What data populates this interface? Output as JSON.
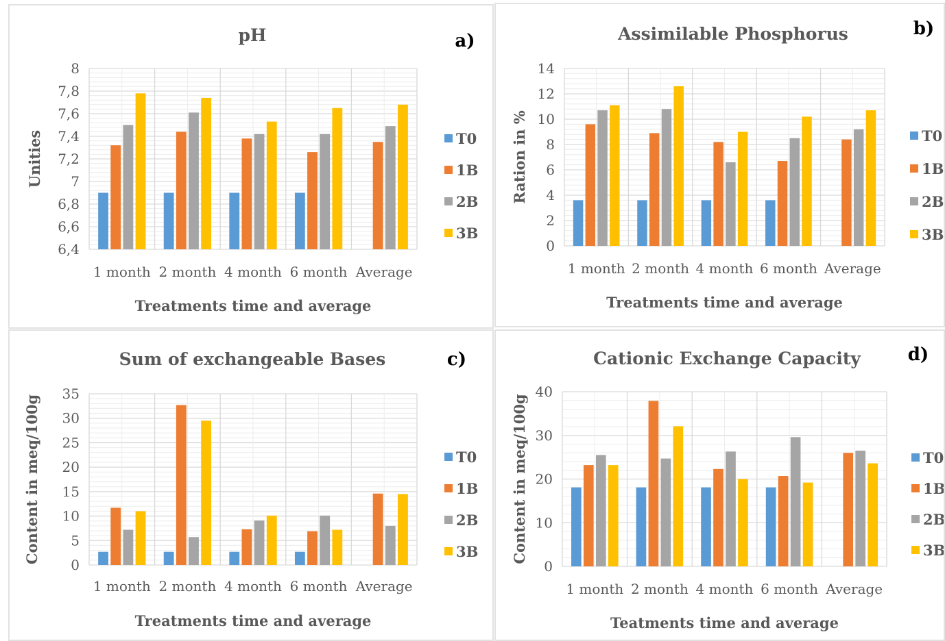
{
  "colors": {
    "T0": "#5b9bd5",
    "1B": "#ed7d31",
    "2B": "#a5a5a5",
    "3B": "#ffc000",
    "grid": "#d9d9d9",
    "text": "#595959"
  },
  "chart_data": [
    {
      "type": "bar",
      "panel_tag": "a)",
      "title": "pH",
      "xlabel": "Treatments time and average",
      "ylabel": "Unities",
      "categories": [
        "1 month",
        "2 month",
        "4 month",
        "6 month",
        "Average"
      ],
      "ylim": [
        6.4,
        8
      ],
      "yticks": [
        "6,4",
        "6,6",
        "6,8",
        "7",
        "7,2",
        "7,4",
        "7,6",
        "7,8",
        "8"
      ],
      "ytick_values": [
        6.4,
        6.6,
        6.8,
        7.0,
        7.2,
        7.4,
        7.6,
        7.8,
        8.0
      ],
      "legend_position": "right",
      "grid": true,
      "series": [
        {
          "name": "T0",
          "values": [
            6.9,
            6.9,
            6.9,
            6.9,
            null
          ]
        },
        {
          "name": "1B",
          "values": [
            7.32,
            7.44,
            7.38,
            7.26,
            7.35
          ]
        },
        {
          "name": "2B",
          "values": [
            7.5,
            7.61,
            7.42,
            7.42,
            7.49
          ]
        },
        {
          "name": "3B",
          "values": [
            7.78,
            7.74,
            7.53,
            7.65,
            7.68
          ]
        }
      ]
    },
    {
      "type": "bar",
      "panel_tag": "b)",
      "title": "Assimilable Phosphorus",
      "xlabel": "Treatments time and average",
      "ylabel": "Ration in %",
      "categories": [
        "1 month",
        "2 month",
        "4 month",
        "6 month",
        "Average"
      ],
      "ylim": [
        0,
        14
      ],
      "yticks": [
        "0",
        "2",
        "4",
        "6",
        "8",
        "10",
        "12",
        "14"
      ],
      "ytick_values": [
        0,
        2,
        4,
        6,
        8,
        10,
        12,
        14
      ],
      "legend_position": "right",
      "grid": true,
      "series": [
        {
          "name": "T0",
          "values": [
            3.6,
            3.6,
            3.6,
            3.6,
            null
          ]
        },
        {
          "name": "1B",
          "values": [
            9.6,
            8.9,
            8.2,
            6.7,
            8.4
          ]
        },
        {
          "name": "2B",
          "values": [
            10.7,
            10.8,
            6.6,
            8.5,
            9.2
          ]
        },
        {
          "name": "3B",
          "values": [
            11.1,
            12.6,
            9.0,
            10.2,
            10.7
          ]
        }
      ]
    },
    {
      "type": "bar",
      "panel_tag": "c)",
      "title": "Sum of exchangeable Bases",
      "xlabel": "Treatments time and average",
      "ylabel": "Content in meq/100g",
      "categories": [
        "1 month",
        "2 month",
        "4 month",
        "6 month",
        "Average"
      ],
      "ylim": [
        0,
        35
      ],
      "yticks": [
        "0",
        "5",
        "10",
        "15",
        "20",
        "25",
        "30",
        "35"
      ],
      "ytick_values": [
        0,
        5,
        10,
        15,
        20,
        25,
        30,
        35
      ],
      "legend_position": "right",
      "grid": true,
      "series": [
        {
          "name": "T0",
          "values": [
            2.7,
            2.7,
            2.7,
            2.7,
            null
          ]
        },
        {
          "name": "1B",
          "values": [
            11.7,
            32.7,
            7.3,
            6.9,
            14.6
          ]
        },
        {
          "name": "2B",
          "values": [
            7.2,
            5.7,
            9.1,
            10.1,
            8.0
          ]
        },
        {
          "name": "3B",
          "values": [
            11.0,
            29.5,
            10.1,
            7.2,
            14.5
          ]
        }
      ]
    },
    {
      "type": "bar",
      "panel_tag": "d)",
      "title": "Cationic Exchange Capacity",
      "xlabel": "Teatments time and average",
      "ylabel": "Content in meq/100g",
      "categories": [
        "1 month",
        "2 month",
        "4 month",
        "6 month",
        "Average"
      ],
      "ylim": [
        0,
        40
      ],
      "yticks": [
        "0",
        "10",
        "20",
        "30",
        "40"
      ],
      "ytick_values": [
        0,
        10,
        20,
        30,
        40
      ],
      "legend_position": "right",
      "grid": true,
      "series": [
        {
          "name": "T0",
          "values": [
            18.1,
            18.1,
            18.1,
            18.1,
            null
          ]
        },
        {
          "name": "1B",
          "values": [
            23.2,
            37.9,
            22.3,
            20.7,
            26.0
          ]
        },
        {
          "name": "2B",
          "values": [
            25.5,
            24.7,
            26.3,
            29.6,
            26.5
          ]
        },
        {
          "name": "3B",
          "values": [
            23.2,
            32.1,
            20.0,
            19.2,
            23.6
          ]
        }
      ]
    }
  ]
}
